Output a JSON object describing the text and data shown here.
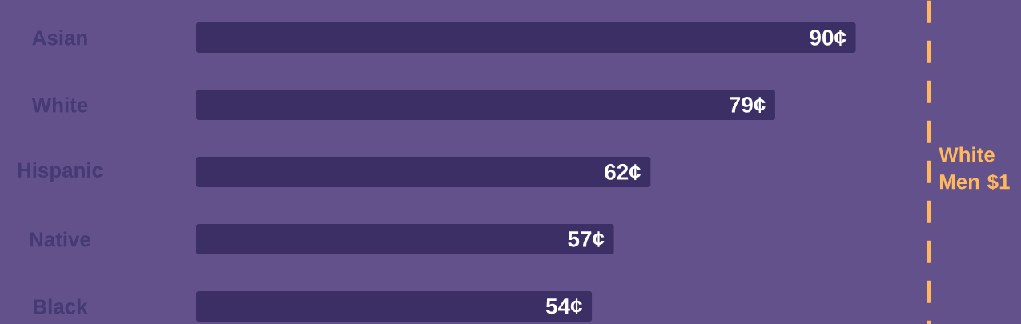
{
  "chart_data": {
    "type": "bar",
    "orientation": "horizontal",
    "categories": [
      "Asian",
      "White",
      "Hispanic",
      "Native",
      "Black"
    ],
    "values": [
      90,
      79,
      62,
      57,
      54
    ],
    "value_labels": [
      "90¢",
      "79¢",
      "62¢",
      "57¢",
      "54¢"
    ],
    "color": "#3b2f66",
    "ref_lines": [
      {
        "axis": "x",
        "value": 100,
        "label": "White Men $1",
        "color": "#ffb85e",
        "line_style": "dashed"
      }
    ]
  }
}
